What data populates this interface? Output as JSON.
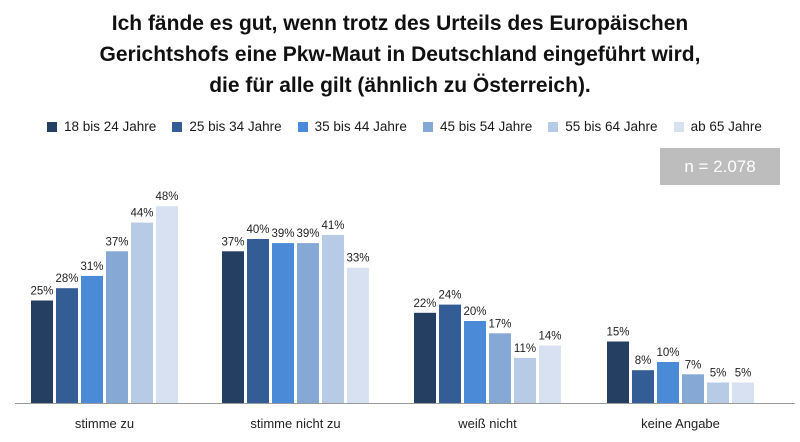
{
  "title_lines": [
    "Ich fände es gut, wenn trotz des Urteils des Europäischen",
    "Gerichtshofs eine Pkw-Maut in Deutschland eingeführt wird,",
    "die für alle gilt (ähnlich zu Österreich)."
  ],
  "n_label": "n = 2.078",
  "chart_data": {
    "type": "bar",
    "title": "Ich fände es gut, wenn trotz des Urteils des Europäischen Gerichtshofs eine Pkw-Maut in Deutschland eingeführt wird, die für alle gilt (ähnlich zu Österreich).",
    "categories": [
      "stimme zu",
      "stimme nicht zu",
      "weiß nicht",
      "keine Angabe"
    ],
    "series": [
      {
        "name": "18 bis 24 Jahre",
        "color": "#253f63",
        "values": [
          25,
          37,
          22,
          15
        ]
      },
      {
        "name": "25 bis 34 Jahre",
        "color": "#345d96",
        "values": [
          28,
          40,
          24,
          8
        ]
      },
      {
        "name": "35 bis 44 Jahre",
        "color": "#4a8ad6",
        "values": [
          31,
          39,
          20,
          10
        ]
      },
      {
        "name": "45 bis 54 Jahre",
        "color": "#86a8d4",
        "values": [
          37,
          39,
          17,
          7
        ]
      },
      {
        "name": "55 bis 64 Jahre",
        "color": "#b8cbe6",
        "values": [
          44,
          41,
          11,
          5
        ]
      },
      {
        "name": "ab 65 Jahre",
        "color": "#d7e1f1",
        "values": [
          48,
          33,
          14,
          5
        ]
      }
    ],
    "value_suffix": "%",
    "xlabel": "",
    "ylabel": "",
    "ylim": [
      0,
      50
    ],
    "grid": false,
    "legend": "top"
  }
}
